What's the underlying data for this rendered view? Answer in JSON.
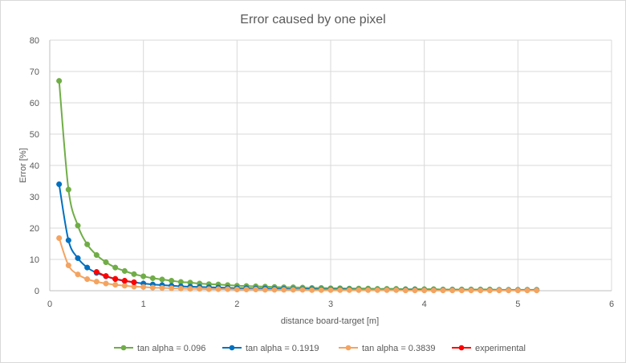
{
  "chart_data": {
    "type": "scatter",
    "title": "Error caused by one pixel",
    "xlabel": "distance board-target [m]",
    "ylabel": "Error [%]",
    "xlim": [
      0,
      6
    ],
    "ylim": [
      0,
      80
    ],
    "x_ticks": [
      "0",
      "1",
      "2",
      "3",
      "4",
      "5",
      "6"
    ],
    "y_ticks": [
      "0",
      "10",
      "20",
      "30",
      "40",
      "50",
      "60",
      "70",
      "80"
    ],
    "grid": true,
    "legend_position": "bottom",
    "smooth_lines": true,
    "series": [
      {
        "name": "tan alpha = 0.096",
        "color": "#70ad47",
        "x": [
          0.1,
          0.2,
          0.3,
          0.4,
          0.5,
          0.6,
          0.7,
          0.8,
          0.9,
          1.0,
          1.1,
          1.2,
          1.3,
          1.4,
          1.5,
          1.6,
          1.7,
          1.8,
          1.9,
          2.0,
          2.1,
          2.2,
          2.3,
          2.4,
          2.5,
          2.6,
          2.7,
          2.8,
          2.9,
          3.0,
          3.1,
          3.2,
          3.3,
          3.4,
          3.5,
          3.6,
          3.7,
          3.8,
          3.9,
          4.0,
          4.1,
          4.2,
          4.3,
          4.4,
          4.5,
          4.6,
          4.7,
          4.8,
          4.9,
          5.0,
          5.1,
          5.2
        ],
        "y": [
          67,
          32.3,
          20.8,
          14.8,
          11.4,
          9.1,
          7.4,
          6.3,
          5.3,
          4.6,
          4.0,
          3.6,
          3.2,
          2.8,
          2.6,
          2.3,
          2.1,
          2.0,
          1.8,
          1.6,
          1.5,
          1.4,
          1.3,
          1.2,
          1.1,
          1.1,
          1.0,
          0.9,
          0.9,
          0.8,
          0.8,
          0.7,
          0.7,
          0.7,
          0.6,
          0.6,
          0.6,
          0.5,
          0.5,
          0.5,
          0.5,
          0.4,
          0.4,
          0.4,
          0.4,
          0.4,
          0.4,
          0.3,
          0.3,
          0.3,
          0.3,
          0.3
        ]
      },
      {
        "name": "tan alpha = 0.1919",
        "color": "#0070c0",
        "x": [
          0.1,
          0.2,
          0.3,
          0.4,
          0.5,
          0.6,
          0.7,
          0.8,
          0.9,
          1.0,
          1.1,
          1.2,
          1.3,
          1.4,
          1.5,
          1.6,
          1.7,
          1.8,
          1.9,
          2.0,
          2.1,
          2.2,
          2.3,
          2.4,
          2.5,
          2.6,
          2.7,
          2.8,
          2.9,
          3.0,
          3.1,
          3.2,
          3.3,
          3.4,
          3.5,
          3.6,
          3.7,
          3.8,
          3.9,
          4.0,
          4.1,
          4.2,
          4.3,
          4.4,
          4.5,
          4.6,
          4.7,
          4.8,
          4.9,
          5.0,
          5.1,
          5.2
        ],
        "y": [
          34,
          16.1,
          10.4,
          7.4,
          5.7,
          4.6,
          3.7,
          3.1,
          2.7,
          2.3,
          2.0,
          1.8,
          1.6,
          1.4,
          1.3,
          1.2,
          1.1,
          1.0,
          0.9,
          0.8,
          0.8,
          0.7,
          0.7,
          0.6,
          0.6,
          0.5,
          0.5,
          0.5,
          0.4,
          0.4,
          0.4,
          0.4,
          0.3,
          0.3,
          0.3,
          0.3,
          0.3,
          0.3,
          0.3,
          0.2,
          0.2,
          0.2,
          0.2,
          0.2,
          0.2,
          0.2,
          0.2,
          0.2,
          0.2,
          0.2,
          0.2,
          0.2
        ]
      },
      {
        "name": "tan alpha = 0.3839",
        "color": "#f4a460",
        "x": [
          0.1,
          0.2,
          0.3,
          0.4,
          0.5,
          0.6,
          0.7,
          0.8,
          0.9,
          1.0,
          1.1,
          1.2,
          1.3,
          1.4,
          1.5,
          1.6,
          1.7,
          1.8,
          1.9,
          2.0,
          2.1,
          2.2,
          2.3,
          2.4,
          2.5,
          2.6,
          2.7,
          2.8,
          2.9,
          3.0,
          3.1,
          3.2,
          3.3,
          3.4,
          3.5,
          3.6,
          3.7,
          3.8,
          3.9,
          4.0,
          4.1,
          4.2,
          4.3,
          4.4,
          4.5,
          4.6,
          4.7,
          4.8,
          4.9,
          5.0,
          5.1,
          5.2
        ],
        "y": [
          16.8,
          8.1,
          5.2,
          3.7,
          2.9,
          2.3,
          1.9,
          1.6,
          1.3,
          1.2,
          1.0,
          0.9,
          0.8,
          0.7,
          0.6,
          0.6,
          0.5,
          0.5,
          0.5,
          0.4,
          0.4,
          0.4,
          0.3,
          0.3,
          0.3,
          0.3,
          0.3,
          0.2,
          0.2,
          0.2,
          0.2,
          0.2,
          0.2,
          0.2,
          0.2,
          0.2,
          0.2,
          0.1,
          0.1,
          0.1,
          0.1,
          0.1,
          0.1,
          0.1,
          0.1,
          0.1,
          0.1,
          0.1,
          0.1,
          0.1,
          0.1,
          0.1
        ]
      },
      {
        "name": "experimental",
        "color": "#ff0000",
        "x": [
          0.5,
          0.6,
          0.7,
          0.8,
          0.9
        ],
        "y": [
          6.0,
          4.7,
          3.8,
          3.2,
          2.7
        ]
      }
    ]
  }
}
